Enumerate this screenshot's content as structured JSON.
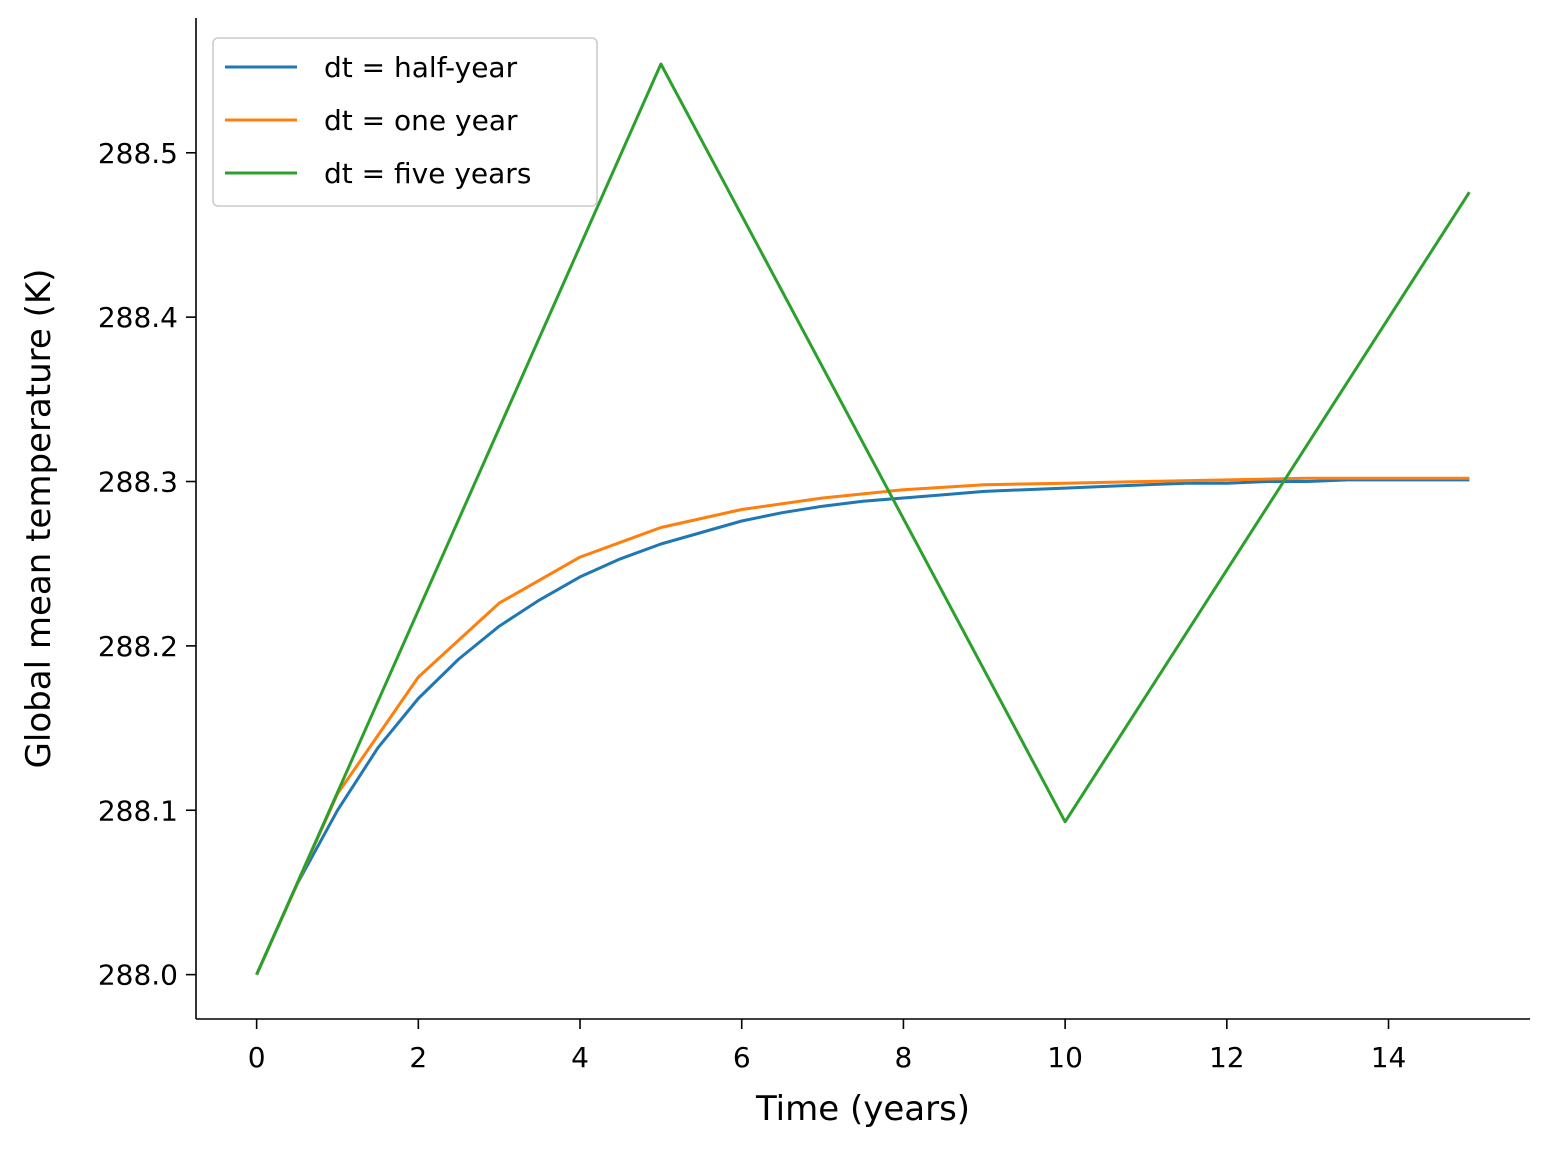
{
  "chart_data": {
    "type": "line",
    "title": "",
    "xlabel": "Time (years)",
    "ylabel": "Global mean temperature (K)",
    "xlim": [
      -0.75,
      15.75
    ],
    "ylim": [
      287.973,
      288.582
    ],
    "xticks": [
      0,
      2,
      4,
      6,
      8,
      10,
      12,
      14
    ],
    "yticks": [
      288.0,
      288.1,
      288.2,
      288.3,
      288.4,
      288.5
    ],
    "ytick_labels": [
      "288.0",
      "288.1",
      "288.2",
      "288.3",
      "288.4",
      "288.5"
    ],
    "grid": false,
    "legend_position": "top-left",
    "series": [
      {
        "name": "dt = half-year",
        "color": "#1f77b4",
        "x": [
          0,
          0.5,
          1,
          1.5,
          2,
          2.5,
          3,
          3.5,
          4,
          4.5,
          5,
          5.5,
          6,
          6.5,
          7,
          7.5,
          8,
          8.5,
          9,
          9.5,
          10,
          10.5,
          11,
          11.5,
          12,
          12.5,
          13,
          13.5,
          14,
          14.5,
          15
        ],
        "y": [
          288.0,
          288.055,
          288.1,
          288.138,
          288.168,
          288.192,
          288.212,
          288.228,
          288.242,
          288.253,
          288.262,
          288.269,
          288.276,
          288.281,
          288.285,
          288.288,
          288.29,
          288.292,
          288.294,
          288.295,
          288.296,
          288.297,
          288.298,
          288.299,
          288.299,
          288.3,
          288.3,
          288.301,
          288.301,
          288.301,
          288.301
        ]
      },
      {
        "name": "dt = one year",
        "color": "#ff7f0e",
        "x": [
          0,
          1,
          2,
          3,
          4,
          5,
          6,
          7,
          8,
          9,
          10,
          11,
          12,
          13,
          14,
          15
        ],
        "y": [
          288.0,
          288.11,
          288.181,
          288.226,
          288.254,
          288.272,
          288.283,
          288.29,
          288.295,
          288.298,
          288.299,
          288.3,
          288.301,
          288.302,
          288.302,
          288.302
        ]
      },
      {
        "name": "dt = five years",
        "color": "#2ca02c",
        "x": [
          0,
          5,
          10,
          15
        ],
        "y": [
          288.0,
          288.554,
          288.093,
          288.476
        ]
      }
    ]
  }
}
